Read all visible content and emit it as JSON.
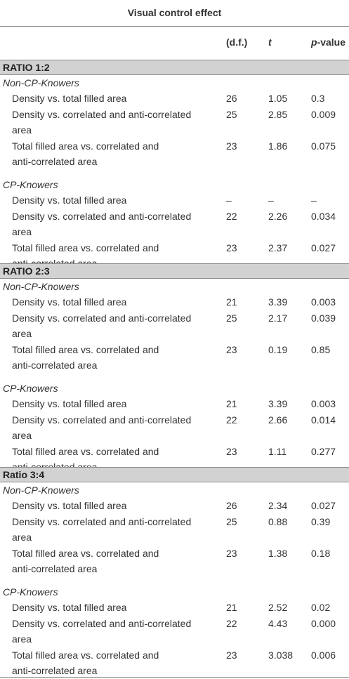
{
  "title": "Visual control effect",
  "headers": {
    "df": "(d.f.)",
    "t": "t",
    "p_italic": "p",
    "p_rest": "-value"
  },
  "sections": [
    {
      "label": "RATIO 1:2",
      "groups": [
        {
          "name": "Non-CP-Knowers",
          "rows": [
            {
              "line1": "Density vs. total filled area",
              "line2": "",
              "df": "26",
              "t": "1.05",
              "p": "0.3"
            },
            {
              "line1": "Density vs. correlated and anti-correlated",
              "line2": "area",
              "df": "25",
              "t": "2.85",
              "p": "0.009"
            },
            {
              "line1": "Total filled area vs. correlated and",
              "line2": "anti-correlated area",
              "df": "23",
              "t": "1.86",
              "p": "0.075"
            }
          ]
        },
        {
          "name": "CP-Knowers",
          "rows": [
            {
              "line1": "Density vs. total filled area",
              "line2": "",
              "df": "–",
              "t": "–",
              "p": "–"
            },
            {
              "line1": "Density vs. correlated and anti-correlated",
              "line2": "area",
              "df": "22",
              "t": "2.26",
              "p": "0.034"
            },
            {
              "line1": "Total filled area vs. correlated and",
              "line2": "anti-correlated area",
              "df": "23",
              "t": "2.37",
              "p": "0.027"
            }
          ]
        }
      ]
    },
    {
      "label": "RATIO 2:3",
      "groups": [
        {
          "name": "Non-CP-Knowers",
          "rows": [
            {
              "line1": "Density vs. total filled area",
              "line2": "",
              "df": "21",
              "t": "3.39",
              "p": "0.003"
            },
            {
              "line1": "Density vs. correlated and anti-correlated",
              "line2": "area",
              "df": "25",
              "t": "2.17",
              "p": "0.039"
            },
            {
              "line1": "Total filled area vs. correlated and",
              "line2": "anti-correlated area",
              "df": "23",
              "t": "0.19",
              "p": "0.85"
            }
          ]
        },
        {
          "name": "CP-Knowers",
          "rows": [
            {
              "line1": "Density vs. total filled area",
              "line2": "",
              "df": "21",
              "t": "3.39",
              "p": "0.003"
            },
            {
              "line1": "Density vs. correlated and anti-correlated",
              "line2": "area",
              "df": "22",
              "t": "2.66",
              "p": "0.014"
            },
            {
              "line1": "Total filled area vs. correlated and",
              "line2": "anti-correlated area",
              "df": "23",
              "t": "1.11",
              "p": "0.277"
            }
          ]
        }
      ]
    },
    {
      "label": "Ratio 3:4",
      "groups": [
        {
          "name": "Non-CP-Knowers",
          "rows": [
            {
              "line1": "Density vs. total filled area",
              "line2": "",
              "df": "26",
              "t": "2.34",
              "p": "0.027"
            },
            {
              "line1": "Density vs. correlated and anti-correlated",
              "line2": "area",
              "df": "25",
              "t": "0.88",
              "p": "0.39"
            },
            {
              "line1": "Total filled area vs. correlated and",
              "line2": "anti-correlated area",
              "df": "23",
              "t": "1.38",
              "p": "0.18"
            }
          ]
        },
        {
          "name": "CP-Knowers",
          "rows": [
            {
              "line1": "Density vs. total filled area",
              "line2": "",
              "df": "21",
              "t": "2.52",
              "p": "0.02"
            },
            {
              "line1": "Density vs. correlated and anti-correlated",
              "line2": "area",
              "df": "22",
              "t": "4.43",
              "p": "0.000"
            },
            {
              "line1": "Total filled area vs. correlated and",
              "line2": "anti-correlated area",
              "df": "23",
              "t": "3.038",
              "p": "0.006"
            }
          ]
        }
      ]
    }
  ]
}
